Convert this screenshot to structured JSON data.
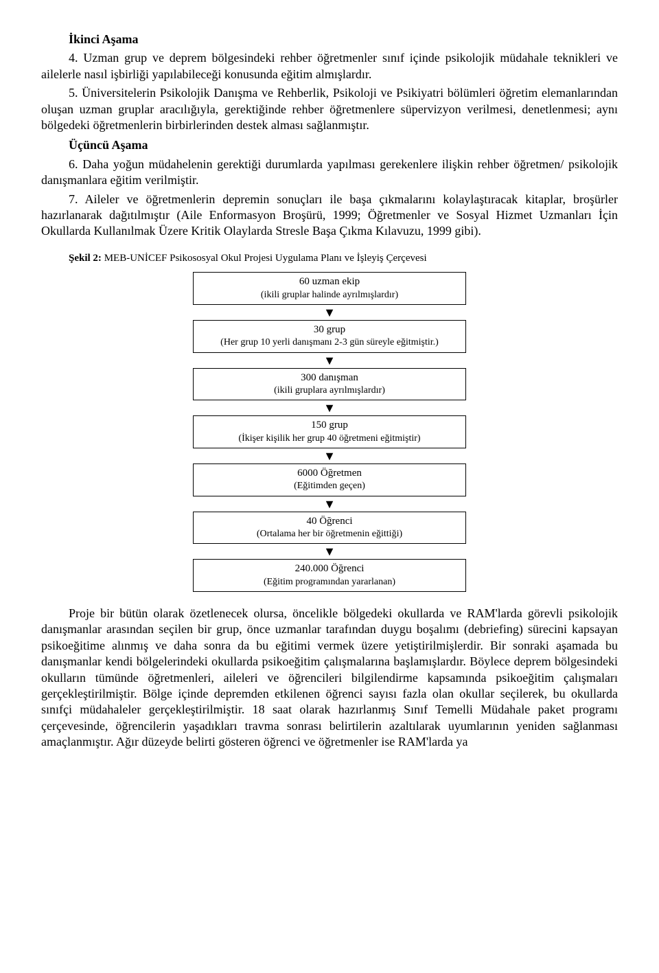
{
  "stage2": {
    "heading": "İkinci Aşama",
    "p4": "4. Uzman grup ve deprem bölgesindeki rehber öğretmenler sınıf içinde psikolojik müdahale teknikleri ve ailelerle nasıl işbirliği yapılabileceği konusunda eğitim almışlardır.",
    "p5": "5. Üniversitelerin Psikolojik Danışma ve Rehberlik, Psikoloji ve Psikiyatri bölümleri öğretim elemanlarından oluşan uzman gruplar aracılığıyla, gerektiğinde rehber öğretmenlere süpervizyon verilmesi, denetlenmesi; aynı bölgedeki öğretmenlerin birbirlerinden destek alması sağlanmıştır."
  },
  "stage3": {
    "heading": "Üçüncü Aşama",
    "p6": "6. Daha yoğun müdahelenin gerektiği durumlarda yapılması gerekenlere ilişkin rehber öğretmen/ psikolojik danışmanlara eğitim verilmiştir.",
    "p7": "7. Aileler ve öğretmenlerin depremin sonuçları ile başa çıkmalarını kolaylaştıracak kitaplar, broşürler hazırlanarak dağıtılmıştır (Aile Enformasyon Broşürü, 1999; Öğretmenler ve Sosyal Hizmet Uzmanları İçin Okullarda Kullanılmak Üzere Kritik Olaylarda Stresle Başa Çıkma Kılavuzu, 1999 gibi)."
  },
  "figure": {
    "label": "Şekil 2:",
    "caption": "MEB-UNİCEF Psikososyal Okul Projesi Uygulama Planı ve İşleyiş Çerçevesi",
    "boxes": [
      {
        "title": "60 uzman ekip",
        "sub": "(ikili gruplar halinde ayrılmışlardır)"
      },
      {
        "title": "30 grup",
        "sub": "(Her grup 10 yerli danışmanı 2-3 gün süreyle eğitmiştir.)"
      },
      {
        "title": "300 danışman",
        "sub": "(ikili gruplara ayrılmışlardır)"
      },
      {
        "title": "150 grup",
        "sub": "(İkişer kişilik her grup 40 öğretmeni eğitmiştir)"
      },
      {
        "title": "6000 Öğretmen",
        "sub": "(Eğitimden geçen)"
      },
      {
        "title": "40 Öğrenci",
        "sub": "(Ortalama her bir öğretmenin eğittiği)"
      },
      {
        "title": "240.000 Öğrenci",
        "sub": "(Eğitim programından yararlanan)"
      }
    ],
    "arrow": "▼"
  },
  "closing": {
    "para": "Proje bir bütün olarak özetlenecek olursa, öncelikle bölgedeki okullarda ve RAM'larda görevli psikolojik danışmanlar arasından seçilen bir grup, önce uzmanlar tarafından duygu boşalımı (debriefing) sürecini kapsayan psikoeğitime alınmış ve daha sonra da bu eğitimi vermek üzere yetiştirilmişlerdir. Bir sonraki aşamada bu danışmanlar kendi bölgelerindeki okullarda psikoeğitim çalışmalarına başlamışlardır. Böylece deprem bölgesindeki okulların tümünde öğretmenleri, aileleri ve öğrencileri bilgilendirme kapsamında psikoeğitim çalışmaları gerçekleştirilmiştir. Bölge içinde depremden etkilenen öğrenci sayısı fazla olan okullar seçilerek, bu okullarda sınıfçi müdahaleler gerçekleştirilmiştir. 18 saat olarak hazırlanmış Sınıf Temelli Müdahale paket programı çerçevesinde, öğrencilerin yaşadıkları travma sonrası belirtilerin azaltılarak uyumlarının yeniden sağlanması amaçlanmıştır. Ağır düzeyde belirti gösteren öğrenci ve öğretmenler ise RAM'larda ya"
  }
}
